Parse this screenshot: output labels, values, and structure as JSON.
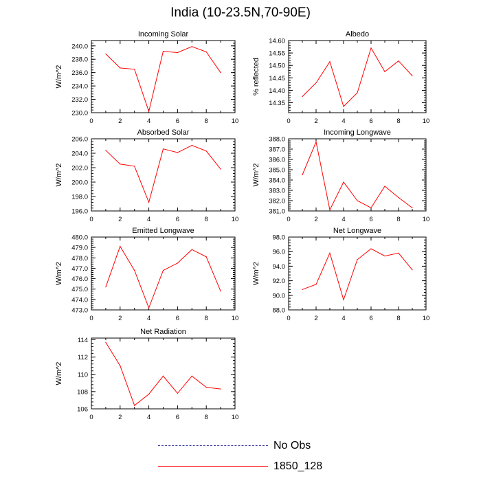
{
  "figure_title": "India (10-23.5N,70-90E)",
  "legend": [
    {
      "label": "No Obs",
      "color": "#3a3aa0",
      "dash": "dashed"
    },
    {
      "label": "1850_128",
      "color": "#ff0000",
      "dash": "solid"
    }
  ],
  "chart_data": [
    {
      "type": "line",
      "title": "Incoming Solar",
      "ylabel": "W/m^2",
      "xlim": [
        0,
        10
      ],
      "xticks": [
        "0",
        "2",
        "4",
        "6",
        "8",
        "10"
      ],
      "ylim": [
        230,
        240.8
      ],
      "yticks": [
        "230.0",
        "232.0",
        "234.0",
        "236.0",
        "238.0",
        "240.0"
      ],
      "series": [
        {
          "x": [
            1,
            2,
            3,
            4,
            5,
            6,
            7,
            8,
            9
          ],
          "values": [
            238.8,
            236.7,
            236.5,
            230.2,
            239.2,
            239.0,
            239.9,
            239.1,
            236.0
          ],
          "color": "#ff0000"
        }
      ]
    },
    {
      "type": "line",
      "title": "Albedo",
      "ylabel": "% reflected",
      "xlim": [
        0,
        10
      ],
      "xticks": [
        "0",
        "2",
        "4",
        "6",
        "8",
        "10"
      ],
      "ylim": [
        14.31,
        14.6
      ],
      "yticks": [
        "14.35",
        "14.40",
        "14.45",
        "14.50",
        "14.55",
        "14.60"
      ],
      "series": [
        {
          "x": [
            1,
            2,
            3,
            4,
            5,
            6,
            7,
            8,
            9
          ],
          "values": [
            14.375,
            14.43,
            14.515,
            14.335,
            14.39,
            14.57,
            14.475,
            14.518,
            14.458
          ],
          "color": "#ff0000"
        }
      ]
    },
    {
      "type": "line",
      "title": "Absorbed Solar",
      "ylabel": "W/m^2",
      "xlim": [
        0,
        10
      ],
      "xticks": [
        "0",
        "2",
        "4",
        "6",
        "8",
        "10"
      ],
      "ylim": [
        196,
        206
      ],
      "yticks": [
        "196.0",
        "198.0",
        "200.0",
        "202.0",
        "204.0",
        "206.0"
      ],
      "series": [
        {
          "x": [
            1,
            2,
            3,
            4,
            5,
            6,
            7,
            8,
            9
          ],
          "values": [
            204.4,
            202.5,
            202.2,
            197.2,
            204.6,
            204.1,
            205.1,
            204.3,
            201.8
          ],
          "color": "#ff0000"
        }
      ]
    },
    {
      "type": "line",
      "title": "Incoming Longwave",
      "ylabel": "W/m^2",
      "xlim": [
        0,
        10
      ],
      "xticks": [
        "0",
        "2",
        "4",
        "6",
        "8",
        "10"
      ],
      "ylim": [
        381,
        388
      ],
      "yticks": [
        "381.0",
        "382.0",
        "383.0",
        "384.0",
        "385.0",
        "386.0",
        "387.0",
        "388.0"
      ],
      "series": [
        {
          "x": [
            1,
            2,
            3,
            4,
            5,
            6,
            7,
            8,
            9
          ],
          "values": [
            384.5,
            387.7,
            381.1,
            383.8,
            382.0,
            381.3,
            383.4,
            382.3,
            381.3
          ],
          "color": "#ff0000"
        }
      ]
    },
    {
      "type": "line",
      "title": "Emitted Longwave",
      "ylabel": "W/m^2",
      "xlim": [
        0,
        10
      ],
      "xticks": [
        "0",
        "2",
        "4",
        "6",
        "8",
        "10"
      ],
      "ylim": [
        473,
        480
      ],
      "yticks": [
        "473.0",
        "474.0",
        "475.0",
        "476.0",
        "477.0",
        "478.0",
        "479.0",
        "480.0"
      ],
      "series": [
        {
          "x": [
            1,
            2,
            3,
            4,
            5,
            6,
            7,
            8,
            9
          ],
          "values": [
            475.2,
            479.1,
            476.8,
            473.2,
            476.8,
            477.5,
            478.8,
            478.1,
            474.8
          ],
          "color": "#ff0000"
        }
      ]
    },
    {
      "type": "line",
      "title": "Net Longwave",
      "ylabel": "W/m^2",
      "xlim": [
        0,
        10
      ],
      "xticks": [
        "0",
        "2",
        "4",
        "6",
        "8",
        "10"
      ],
      "ylim": [
        88,
        98
      ],
      "yticks": [
        "88.0",
        "90.0",
        "92.0",
        "94.0",
        "96.0",
        "98.0"
      ],
      "series": [
        {
          "x": [
            1,
            2,
            3,
            4,
            5,
            6,
            7,
            8,
            9
          ],
          "values": [
            90.8,
            91.5,
            95.8,
            89.4,
            94.9,
            96.4,
            95.4,
            95.8,
            93.5
          ],
          "color": "#ff0000"
        }
      ]
    },
    {
      "type": "line",
      "title": "Net Radiation",
      "ylabel": "W/m^2",
      "xlim": [
        0,
        10
      ],
      "xticks": [
        "0",
        "2",
        "4",
        "6",
        "8",
        "10"
      ],
      "ylim": [
        106,
        114.2
      ],
      "yticks": [
        "106",
        "108",
        "110",
        "112",
        "114"
      ],
      "series": [
        {
          "x": [
            1,
            2,
            3,
            4,
            5,
            6,
            7,
            8,
            9
          ],
          "values": [
            113.7,
            111.0,
            106.4,
            107.7,
            109.8,
            107.8,
            109.8,
            108.5,
            108.3
          ],
          "color": "#ff0000"
        }
      ]
    }
  ]
}
